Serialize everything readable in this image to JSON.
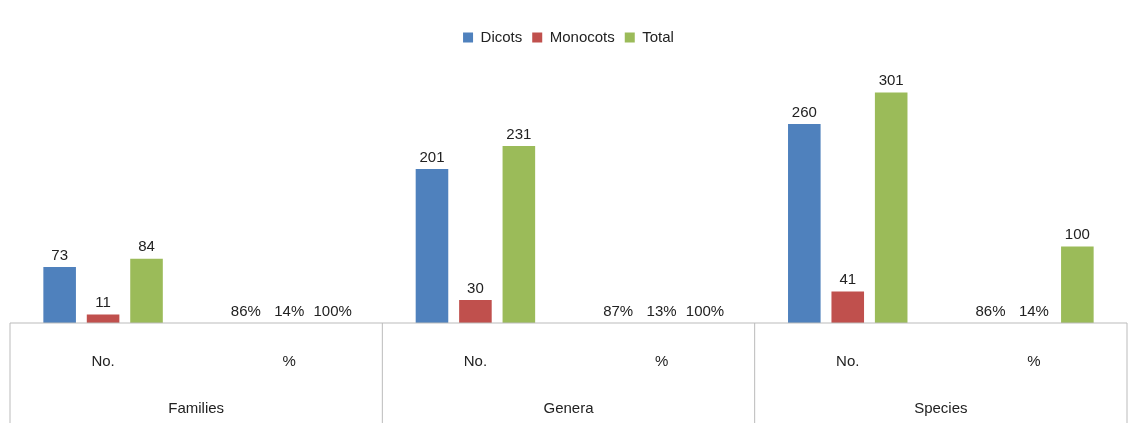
{
  "chart_data": {
    "type": "bar",
    "categories": [
      "No.",
      "%",
      "No.",
      "%",
      "No.",
      "%"
    ],
    "series": [
      {
        "name": "Dicots",
        "color": "#4f81bd",
        "values": [
          73,
          null,
          201,
          null,
          260,
          null
        ]
      },
      {
        "name": "Monocots",
        "color": "#c0504d",
        "values": [
          11,
          null,
          30,
          null,
          41,
          null
        ]
      },
      {
        "name": "Total",
        "color": "#9bbb59",
        "values": [
          84,
          null,
          231,
          null,
          301,
          100
        ]
      }
    ],
    "data_labels": true,
    "annotations": [
      "Families",
      "Genera",
      "Species",
      "86%",
      "14%",
      "100%",
      "87%",
      "13%",
      "100%",
      "86%",
      "14%"
    ],
    "legend": "top",
    "grid": false
  }
}
